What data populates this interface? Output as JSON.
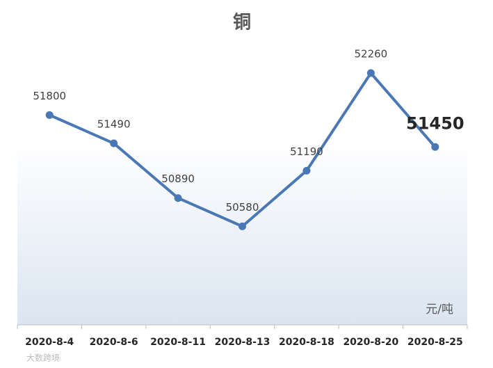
{
  "chart_data": {
    "type": "line",
    "title": "铜",
    "categories": [
      "2020-8-4",
      "2020-8-6",
      "2020-8-11",
      "2020-8-13",
      "2020-8-18",
      "2020-8-20",
      "2020-8-25"
    ],
    "series": [
      {
        "name": "铜",
        "color": "#4a78b5",
        "values": [
          51800,
          51490,
          50890,
          50580,
          51190,
          52260,
          51450
        ]
      }
    ],
    "ylim": [
      49500,
      53000
    ],
    "unit_label": "元/吨",
    "highlight_last": true,
    "watermark": "大数跨境"
  }
}
